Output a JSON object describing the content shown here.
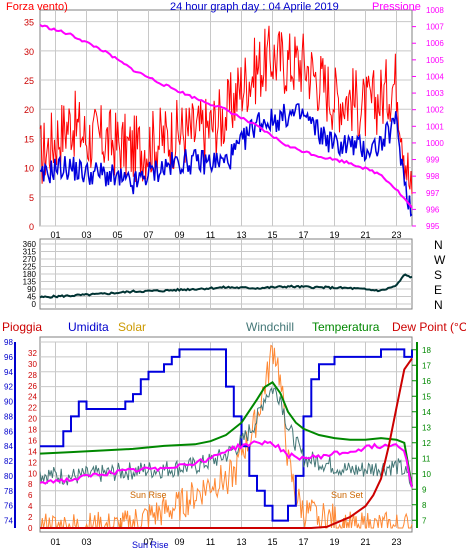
{
  "colors": {
    "frame": "#808080",
    "grid": "#c8c8c8",
    "wind_gust": "#ff0000",
    "wind_avg": "#0000dd",
    "pressure": "#ff00ff",
    "direction": "#003333",
    "humidity": "#0000dd",
    "solar": "#ff8833",
    "windchill": "#447777",
    "temperature": "#008800",
    "dewpoint": "#ff00ff",
    "rain": "#cc0000",
    "sun_marker": "#cc6600"
  },
  "chart_data": [
    {
      "id": "wind-pressure",
      "type": "line",
      "title": "24 hour graph day : 04 Aprile 2019",
      "left_label": "Forza vento)",
      "right_label": "Pressione",
      "x_ticks": [
        "01",
        "03",
        "05",
        "07",
        "09",
        "11",
        "13",
        "15",
        "17",
        "19",
        "21",
        "23"
      ],
      "xlim": [
        0,
        24
      ],
      "ylim": [
        0,
        37
      ],
      "y_ticks": [
        0,
        5,
        10,
        15,
        20,
        25,
        30,
        35
      ],
      "y2lim": [
        995,
        1008
      ],
      "y2_ticks": [
        995,
        996,
        997,
        998,
        999,
        1000,
        1001,
        1002,
        1003,
        1004,
        1005,
        1006,
        1007,
        1008
      ],
      "series": [
        {
          "name": "gust",
          "color_key": "wind_gust",
          "axis": "left",
          "x": [
            0,
            1,
            2,
            3,
            4,
            5,
            6,
            7,
            8,
            9,
            10,
            11,
            12,
            13,
            14,
            15,
            16,
            17,
            18,
            19,
            20,
            21,
            22,
            23,
            23.5,
            24
          ],
          "y": [
            12,
            15,
            18,
            15,
            15,
            14,
            13,
            14,
            15,
            16,
            16,
            17,
            19,
            24,
            27,
            29,
            28,
            28,
            25,
            22,
            22,
            20,
            22,
            25,
            14,
            4
          ]
        },
        {
          "name": "average",
          "color_key": "wind_avg",
          "axis": "left",
          "x": [
            0,
            1,
            2,
            3,
            4,
            5,
            6,
            7,
            8,
            9,
            10,
            11,
            12,
            13,
            14,
            15,
            16,
            17,
            18,
            19,
            20,
            21,
            22,
            23,
            23.5,
            24
          ],
          "y": [
            8,
            10,
            10,
            9,
            9,
            8,
            7,
            9,
            10,
            11,
            11,
            11,
            11,
            14,
            18,
            18,
            19,
            19,
            16,
            14,
            14,
            13,
            14,
            18,
            8,
            2
          ]
        },
        {
          "name": "pressure",
          "color_key": "pressure",
          "axis": "right",
          "x": [
            0,
            2,
            4,
            6,
            8,
            10,
            12,
            14,
            16,
            18,
            20,
            22,
            23,
            24
          ],
          "y": [
            1007.1,
            1006.5,
            1005.6,
            1004.4,
            1003.5,
            1002.7,
            1002,
            1001,
            999.8,
            999.2,
            998.8,
            998.1,
            997.2,
            996.1
          ]
        }
      ]
    },
    {
      "id": "wind-direction",
      "type": "line",
      "xlim": [
        0,
        24
      ],
      "ylim": [
        0,
        360
      ],
      "y_ticks": [
        0,
        45,
        90,
        135,
        180,
        225,
        270,
        315,
        360
      ],
      "compass": [
        "N",
        "W",
        "S",
        "E",
        "N"
      ],
      "series": [
        {
          "name": "direction",
          "color_key": "direction",
          "x": [
            0,
            2,
            4,
            6,
            8,
            10,
            12,
            14,
            16,
            18,
            20,
            22,
            23,
            23.5,
            24
          ],
          "y": [
            40,
            50,
            60,
            75,
            80,
            90,
            100,
            95,
            105,
            100,
            95,
            80,
            110,
            175,
            160
          ]
        }
      ]
    },
    {
      "id": "temp-humidity",
      "type": "line",
      "labels": [
        "Pioggia",
        "Umidita",
        "Solar",
        "Windchill",
        "Temperatura",
        "Dew Point (°C)"
      ],
      "x_ticks": [
        "01",
        "03",
        "05",
        "07",
        "09",
        "11",
        "13",
        "15",
        "17",
        "19",
        "21",
        "23"
      ],
      "xlim": [
        0,
        24
      ],
      "ylim": [
        73,
        98
      ],
      "y_ticks": [
        74,
        76,
        78,
        80,
        82,
        84,
        86,
        88,
        90,
        92,
        94,
        96,
        98
      ],
      "y2lim": [
        6.5,
        18.5
      ],
      "y2_ticks": [
        7,
        8,
        9,
        10,
        11,
        12,
        13,
        14,
        15,
        16,
        17,
        18
      ],
      "rain_ticks": [
        0,
        2,
        4,
        6,
        8,
        10,
        12,
        14,
        16,
        18,
        20,
        22,
        24,
        26,
        28,
        30,
        32
      ],
      "sun_rise_label": "Sun Rise",
      "sun_set_label": "Sun Set",
      "series": [
        {
          "name": "humidity",
          "color_key": "humidity",
          "axis": "left",
          "x": [
            0,
            1,
            1.5,
            2,
            2.5,
            3,
            4,
            4.5,
            5,
            5.5,
            6,
            6.5,
            7,
            8,
            8.5,
            9,
            10,
            11,
            11.8,
            12,
            12.5,
            13,
            13.5,
            14,
            14.5,
            15,
            15.5,
            16,
            16.5,
            17,
            17.5,
            18,
            19,
            20,
            21,
            22,
            23,
            23.5,
            24
          ],
          "y": [
            84,
            84,
            86,
            88,
            90,
            89,
            89,
            89,
            89,
            90,
            91,
            93,
            94,
            95,
            96,
            97,
            97,
            97,
            97,
            92,
            88,
            84,
            80,
            78,
            76,
            74,
            74,
            76,
            80,
            88,
            93,
            95,
            96,
            96,
            96,
            97,
            97,
            96,
            97
          ]
        },
        {
          "name": "windchill",
          "color_key": "windchill",
          "axis": "right",
          "x": [
            0,
            2,
            4,
            6,
            8,
            10,
            11,
            12,
            13,
            14,
            14.5,
            15,
            15.5,
            16,
            17,
            18,
            19,
            20,
            21,
            22,
            23,
            23.5,
            24
          ],
          "y": [
            10,
            9.8,
            10,
            10.2,
            10.3,
            10.5,
            10.8,
            11.2,
            12,
            13.5,
            15,
            15.5,
            15,
            13,
            11,
            10.8,
            10.5,
            10.2,
            10.3,
            10.4,
            10.5,
            10.2,
            9.2
          ]
        },
        {
          "name": "temperature",
          "color_key": "temperature",
          "axis": "right",
          "x": [
            0,
            2,
            4,
            6,
            8,
            10,
            11,
            12,
            13,
            14,
            14.5,
            15,
            15.5,
            16,
            16.5,
            17,
            18,
            19,
            20,
            21,
            22,
            23,
            23.5,
            24
          ],
          "y": [
            11.3,
            11.4,
            11.5,
            11.6,
            11.8,
            11.9,
            12.1,
            12.5,
            13.3,
            14.8,
            15.6,
            15.9,
            15.2,
            14,
            13.3,
            12.9,
            12.5,
            12.3,
            12.2,
            12.2,
            12.3,
            12.2,
            12,
            9.2
          ]
        },
        {
          "name": "dew point",
          "color_key": "dewpoint",
          "axis": "right",
          "x": [
            0,
            2,
            4,
            6,
            8,
            10,
            11,
            12,
            13,
            14,
            15,
            16,
            17,
            18,
            19,
            20,
            21,
            22,
            23,
            23.5,
            24
          ],
          "y": [
            9.5,
            9.6,
            10,
            10.2,
            10.4,
            10.7,
            11,
            11.5,
            11.8,
            12,
            12,
            11.2,
            11,
            11.1,
            11.3,
            11.4,
            11.7,
            11.8,
            11.9,
            11.6,
            9.2
          ]
        },
        {
          "name": "solar",
          "color_key": "solar",
          "axis": "rain",
          "x": [
            0,
            5.2,
            5.6,
            6,
            7,
            8,
            9,
            10,
            11,
            12,
            12.6,
            13,
            13.5,
            14,
            14.3,
            14.7,
            15,
            15.3,
            15.7,
            16,
            16.5,
            17,
            18,
            19,
            19.3,
            19.6,
            20,
            24
          ],
          "y": [
            0,
            0,
            0.4,
            1,
            2,
            3,
            4,
            6,
            8,
            9,
            10,
            14,
            16,
            20,
            24,
            28,
            33,
            31,
            22,
            12,
            6,
            3,
            2,
            1.5,
            0.5,
            0,
            0,
            0
          ]
        },
        {
          "name": "rain",
          "color_key": "rain",
          "axis": "rain",
          "x": [
            0,
            17.5,
            18.5,
            19,
            20,
            21,
            21.5,
            22,
            22.5,
            23,
            23.5,
            24
          ],
          "y": [
            0,
            0,
            0.2,
            0.8,
            2,
            4,
            6,
            9,
            15,
            22,
            29,
            31
          ]
        }
      ]
    }
  ]
}
